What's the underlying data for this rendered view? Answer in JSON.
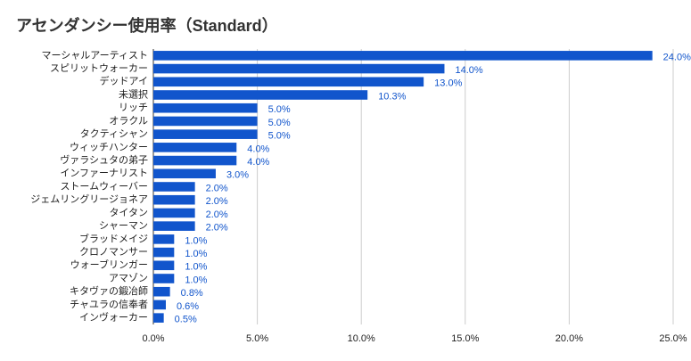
{
  "chart_data": {
    "type": "bar",
    "orientation": "horizontal",
    "title": "アセンダンシー使用率（Standard）",
    "categories": [
      "マーシャルアーティスト",
      "スピリットウォーカー",
      "デッドアイ",
      "未選択",
      "リッチ",
      "オラクル",
      "タクティシャン",
      "ウィッチハンター",
      "ヴァラシュタの弟子",
      "インファーナリスト",
      "ストームウィーバー",
      "ジェムリングリージョネア",
      "タイタン",
      "シャーマン",
      "ブラッドメイジ",
      "クロノマンサー",
      "ウォーブリンガー",
      "アマゾン",
      "キタヴァの鍛冶師",
      "チャユラの信奉者",
      "インヴォーカー"
    ],
    "values": [
      24.0,
      14.0,
      13.0,
      10.3,
      5.0,
      5.0,
      5.0,
      4.0,
      4.0,
      3.0,
      2.0,
      2.0,
      2.0,
      2.0,
      1.0,
      1.0,
      1.0,
      1.0,
      0.8,
      0.6,
      0.5
    ],
    "value_labels": [
      "24.0%",
      "14.0%",
      "13.0%",
      "10.3%",
      "5.0%",
      "5.0%",
      "5.0%",
      "4.0%",
      "4.0%",
      "3.0%",
      "2.0%",
      "2.0%",
      "2.0%",
      "2.0%",
      "1.0%",
      "1.0%",
      "1.0%",
      "1.0%",
      "0.8%",
      "0.6%",
      "0.5%"
    ],
    "color": "#1155cc",
    "xlim": [
      0,
      25
    ],
    "xticks": [
      {
        "value": 0,
        "label": "0.0%"
      },
      {
        "value": 5,
        "label": "5.0%"
      },
      {
        "value": 10,
        "label": "10.0%"
      },
      {
        "value": 15,
        "label": "15.0%"
      },
      {
        "value": 20,
        "label": "20.0%"
      },
      {
        "value": 25,
        "label": "25.0%"
      }
    ],
    "grid": true
  }
}
